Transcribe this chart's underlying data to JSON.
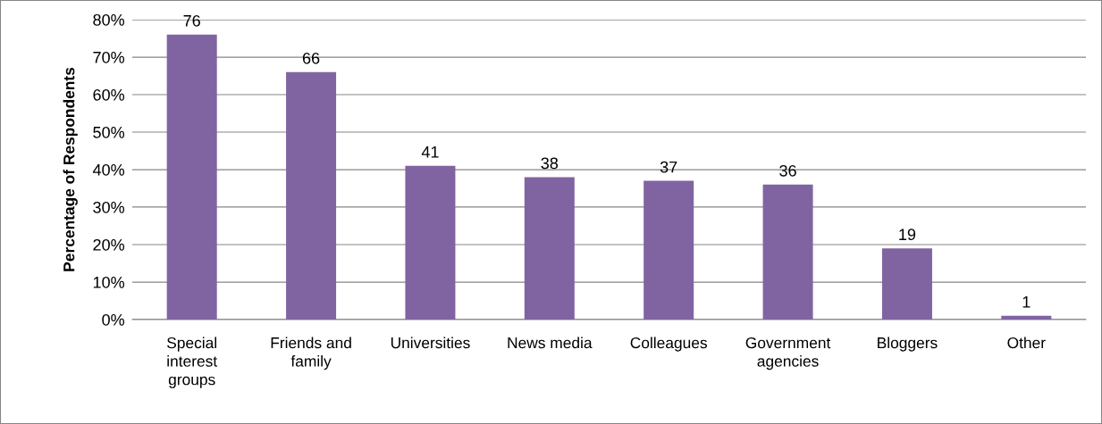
{
  "chart_data": {
    "type": "bar",
    "ylabel": "Percentage of Respondents",
    "categories": [
      "Special\ninterest\ngroups",
      "Friends and\nfamily",
      "Universities",
      "News media",
      "Colleagues",
      "Government\nagencies",
      "Bloggers",
      "Other"
    ],
    "values": [
      76,
      66,
      41,
      38,
      37,
      36,
      19,
      1
    ],
    "color": "#8064a2",
    "ylim": [
      0,
      80
    ],
    "yticks": [
      {
        "value": 0,
        "label": "0%"
      },
      {
        "value": 10,
        "label": "10%"
      },
      {
        "value": 20,
        "label": "20%"
      },
      {
        "value": 30,
        "label": "30%"
      },
      {
        "value": 40,
        "label": "40%"
      },
      {
        "value": 50,
        "label": "50%"
      },
      {
        "value": 60,
        "label": "60%"
      },
      {
        "value": 70,
        "label": "70%"
      },
      {
        "value": 80,
        "label": "80%"
      }
    ],
    "grid": "y",
    "data_labels": true
  }
}
